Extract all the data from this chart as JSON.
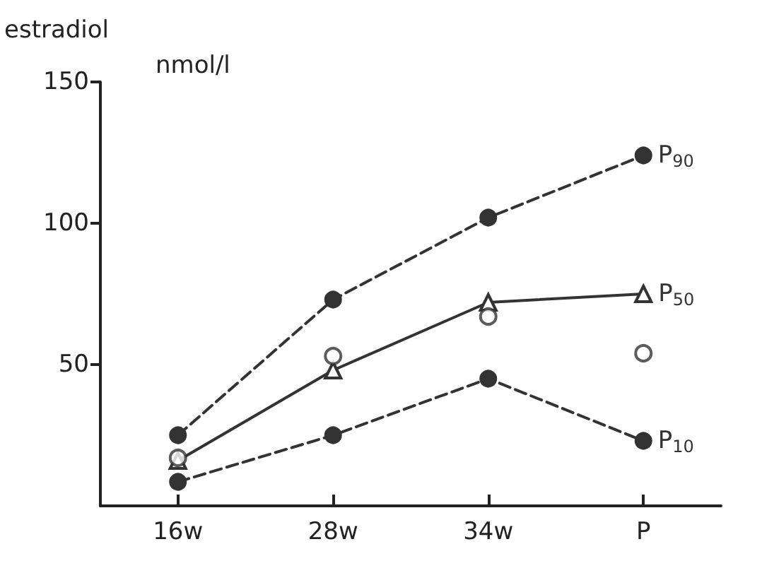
{
  "chart_data": {
    "type": "line",
    "ylabel": "estradiol",
    "annotations": [
      "nmol/l"
    ],
    "categories": [
      "16w",
      "28w",
      "34w",
      "P"
    ],
    "ylim": [
      0,
      150
    ],
    "yticks": [
      50,
      100,
      150
    ],
    "grid": false,
    "legend": false,
    "series": [
      {
        "name": "P$_{90}$",
        "color": "#333333",
        "marker": "circle",
        "line_style": "dashed",
        "values": [
          25,
          73,
          102,
          124
        ]
      },
      {
        "name": "P$_{50}$",
        "color": "#333333",
        "marker": "triangle",
        "line_style": "solid",
        "values": [
          16,
          48,
          72,
          75
        ]
      },
      {
        "name": "P$_{10}$",
        "color": "#333333",
        "marker": "circle",
        "line_style": "dashed",
        "values": [
          8.5,
          25,
          45,
          23
        ]
      },
      {
        "type": "scatter",
        "color": "#333333",
        "marker": "circle",
        "values": [
          17,
          53,
          67,
          54
        ]
      }
    ]
  }
}
